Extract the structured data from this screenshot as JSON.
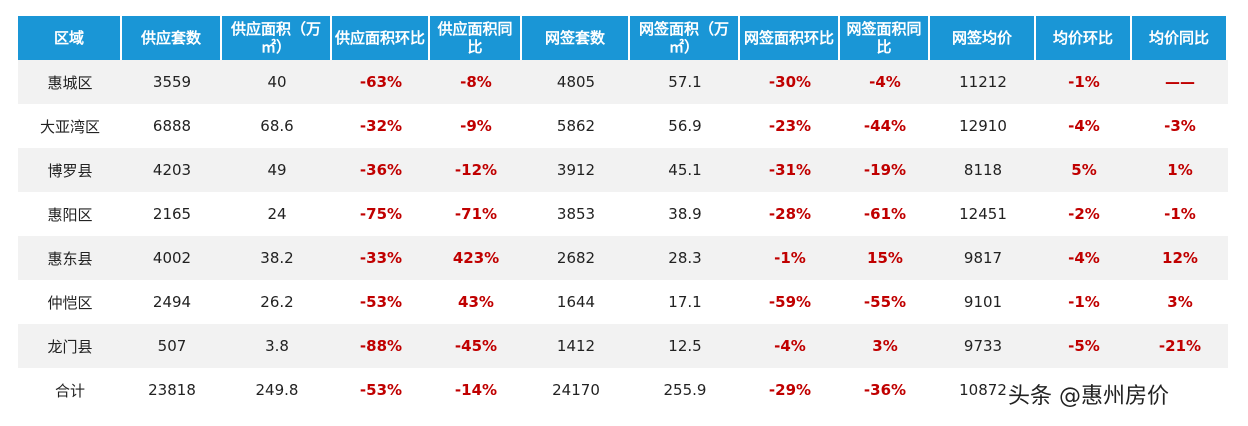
{
  "table": {
    "header": [
      "区域",
      "供应套数",
      "供应面积（万㎡）",
      "供应面积环比",
      "供应面积同比",
      "网签套数",
      "网签面积（万㎡）",
      "网签面积环比",
      "网签面积同比",
      "网签均价",
      "均价环比",
      "均价同比"
    ],
    "rows": [
      [
        "惠城区",
        "3559",
        "40",
        "-63%",
        "-8%",
        "4805",
        "57.1",
        "-30%",
        "-4%",
        "11212",
        "-1%",
        "——"
      ],
      [
        "大亚湾区",
        "6888",
        "68.6",
        "-32%",
        "-9%",
        "5862",
        "56.9",
        "-23%",
        "-44%",
        "12910",
        "-4%",
        "-3%"
      ],
      [
        "博罗县",
        "4203",
        "49",
        "-36%",
        "-12%",
        "3912",
        "45.1",
        "-31%",
        "-19%",
        "8118",
        "5%",
        "1%"
      ],
      [
        "惠阳区",
        "2165",
        "24",
        "-75%",
        "-71%",
        "3853",
        "38.9",
        "-28%",
        "-61%",
        "12451",
        "-2%",
        "-1%"
      ],
      [
        "惠东县",
        "4002",
        "38.2",
        "-33%",
        "423%",
        "2682",
        "28.3",
        "-1%",
        "15%",
        "9817",
        "-4%",
        "12%"
      ],
      [
        "仲恺区",
        "2494",
        "26.2",
        "-53%",
        "43%",
        "1644",
        "17.1",
        "-59%",
        "-55%",
        "9101",
        "-1%",
        "3%"
      ],
      [
        "龙门县",
        "507",
        "3.8",
        "-88%",
        "-45%",
        "1412",
        "12.5",
        "-4%",
        "3%",
        "9733",
        "-5%",
        "-21%"
      ],
      [
        "合计",
        "23818",
        "249.8",
        "-53%",
        "-14%",
        "24170",
        "255.9",
        "-29%",
        "-36%",
        "10872"
      ]
    ]
  },
  "watermark": "头条 @惠州房价"
}
